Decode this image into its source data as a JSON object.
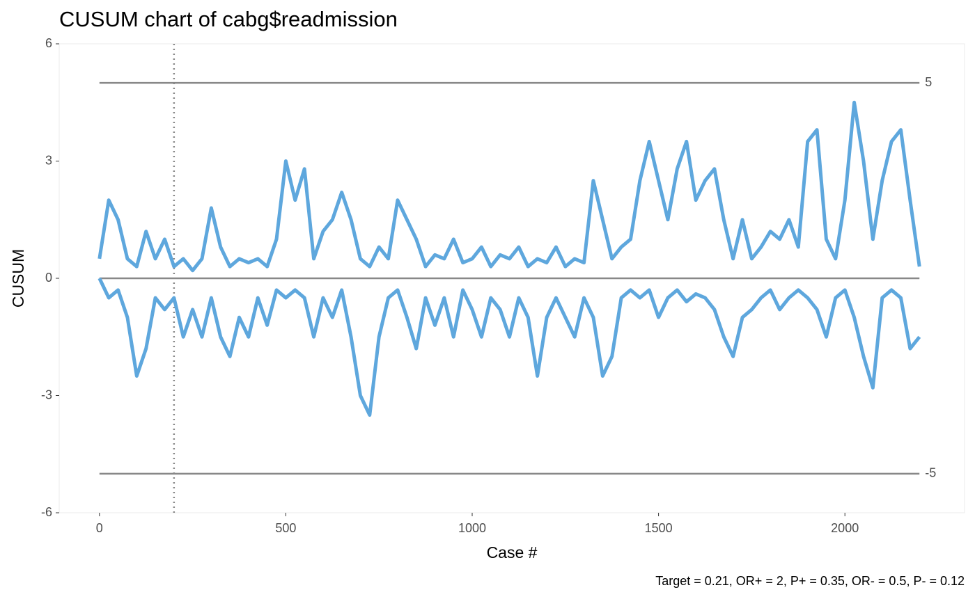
{
  "chart_data": {
    "type": "line",
    "title": "CUSUM chart of cabg$readmission",
    "x_label": "Case #",
    "y_label": "CUSUM",
    "caption": "Target = 0.21, OR+ = 2, P+ = 0.35, OR- = 0.5, P- = 0.12",
    "x": [
      0,
      25,
      50,
      75,
      100,
      125,
      150,
      175,
      200,
      225,
      250,
      275,
      300,
      325,
      350,
      375,
      400,
      425,
      450,
      475,
      500,
      525,
      550,
      575,
      600,
      625,
      650,
      675,
      700,
      725,
      750,
      775,
      800,
      825,
      850,
      875,
      900,
      925,
      950,
      975,
      1000,
      1025,
      1050,
      1075,
      1100,
      1125,
      1150,
      1175,
      1200,
      1225,
      1250,
      1275,
      1300,
      1325,
      1350,
      1375,
      1400,
      1425,
      1450,
      1475,
      1500,
      1525,
      1550,
      1575,
      1600,
      1625,
      1650,
      1675,
      1700,
      1725,
      1750,
      1775,
      1800,
      1825,
      1850,
      1875,
      1900,
      1925,
      1950,
      1975,
      2000,
      2025,
      2050,
      2075,
      2100,
      2125,
      2150,
      2175,
      2200
    ],
    "series": [
      {
        "color": "#5ea7dd",
        "values": [
          0.5,
          2.0,
          1.5,
          0.5,
          0.3,
          1.2,
          0.5,
          1.0,
          0.3,
          0.5,
          0.2,
          0.5,
          1.8,
          0.8,
          0.3,
          0.5,
          0.4,
          0.5,
          0.3,
          1.0,
          3.0,
          2.0,
          2.8,
          0.5,
          1.2,
          1.5,
          2.2,
          1.5,
          0.5,
          0.3,
          0.8,
          0.5,
          2.0,
          1.5,
          1.0,
          0.3,
          0.6,
          0.5,
          1.0,
          0.4,
          0.5,
          0.8,
          0.3,
          0.6,
          0.5,
          0.8,
          0.3,
          0.5,
          0.4,
          0.8,
          0.3,
          0.5,
          0.4,
          2.5,
          1.5,
          0.5,
          0.8,
          1.0,
          2.5,
          3.5,
          2.5,
          1.5,
          2.8,
          3.5,
          2.0,
          2.5,
          2.8,
          1.5,
          0.5,
          1.5,
          0.5,
          0.8,
          1.2,
          1.0,
          1.5,
          0.8,
          3.5,
          3.8,
          1.0,
          0.5,
          2.0,
          4.5,
          3.0,
          1.0,
          2.5,
          3.5,
          3.8,
          2.0,
          0.3
        ]
      },
      {
        "color": "#5ea7dd",
        "values": [
          0,
          -0.5,
          -0.3,
          -1.0,
          -2.5,
          -1.8,
          -0.5,
          -0.8,
          -0.5,
          -1.5,
          -0.8,
          -1.5,
          -0.5,
          -1.5,
          -2.0,
          -1.0,
          -1.5,
          -0.5,
          -1.2,
          -0.3,
          -0.5,
          -0.3,
          -0.5,
          -1.5,
          -0.5,
          -1.0,
          -0.3,
          -1.5,
          -3.0,
          -3.5,
          -1.5,
          -0.5,
          -0.3,
          -1.0,
          -1.8,
          -0.5,
          -1.2,
          -0.5,
          -1.5,
          -0.3,
          -0.8,
          -1.5,
          -0.5,
          -0.8,
          -1.5,
          -0.5,
          -1.0,
          -2.5,
          -1.0,
          -0.5,
          -1.0,
          -1.5,
          -0.5,
          -1.0,
          -2.5,
          -2.0,
          -0.5,
          -0.3,
          -0.5,
          -0.3,
          -1.0,
          -0.5,
          -0.3,
          -0.6,
          -0.4,
          -0.5,
          -0.8,
          -1.5,
          -2.0,
          -1.0,
          -0.8,
          -0.5,
          -0.3,
          -0.8,
          -0.5,
          -0.3,
          -0.5,
          -0.8,
          -1.5,
          -0.5,
          -0.3,
          -1.0,
          -2.0,
          -2.8,
          -0.5,
          -0.3,
          -0.5,
          -1.8,
          -1.5
        ]
      }
    ],
    "control_limits": [
      5,
      -5
    ],
    "center_line": 0,
    "vline": 200,
    "xlim": [
      -108,
      2321
    ],
    "ylim": [
      -6,
      6
    ],
    "xticks": [
      0,
      500,
      1000,
      1500,
      2000
    ],
    "yticks": [
      -6,
      -3,
      0,
      3,
      6
    ]
  }
}
